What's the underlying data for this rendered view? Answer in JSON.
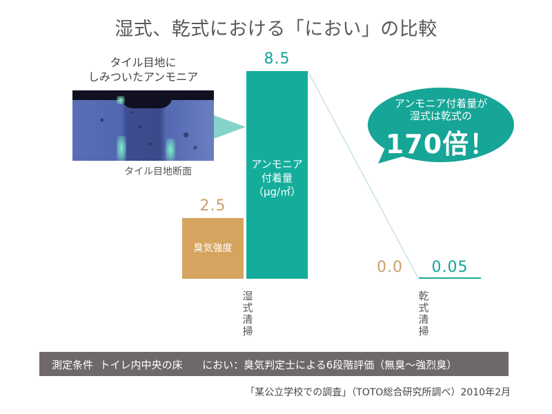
{
  "title": "湿式、乾式における「におい」の比較",
  "photo": {
    "caption_line1": "タイル目地に",
    "caption_line2": "しみついたアンモニア",
    "sub_caption": "タイル目地断面"
  },
  "bars": {
    "ammonia_label_line1": "アンモニア",
    "ammonia_label_line2": "付着量",
    "ammonia_label_line3": "（μg/㎡）",
    "odor_label": "臭気強度",
    "wet_ammonia_value": "8.5",
    "wet_odor_value": "2.5",
    "dry_odor_value": "0.0",
    "dry_ammonia_value": "0.05"
  },
  "x_labels": {
    "wet": "湿式清掃",
    "dry": "乾式清掃"
  },
  "bubble": {
    "line1": "アンモニア付着量が",
    "line2": "湿式は乾式の",
    "highlight": "170倍！"
  },
  "conditions": "測定条件  トイレ内中央の床      におい：臭気判定士による6段階評価（無臭～強烈臭）",
  "source": "「某公立学校での調査」（TOTO総合研究所調べ）2010年2月",
  "colors": {
    "ammonia": "#14ad9c",
    "odor": "#d5a45f",
    "conditions_bar": "#6f6869"
  },
  "chart_data": {
    "type": "bar",
    "title": "湿式、乾式における「におい」の比較",
    "categories": [
      "湿式清掃",
      "乾式清掃"
    ],
    "series": [
      {
        "name": "臭気強度",
        "values": [
          2.5,
          0.0
        ],
        "color": "#d5a45f"
      },
      {
        "name": "アンモニア付着量（μg/㎡）",
        "values": [
          8.5,
          0.05
        ],
        "color": "#14ad9c"
      }
    ],
    "annotations": [
      "アンモニア付着量が湿式は乾式の170倍！",
      "タイル目地にしみついたアンモニア",
      "タイル目地断面"
    ],
    "xlabel": "",
    "ylabel": "",
    "grid": false,
    "legend": "inline bar labels"
  }
}
